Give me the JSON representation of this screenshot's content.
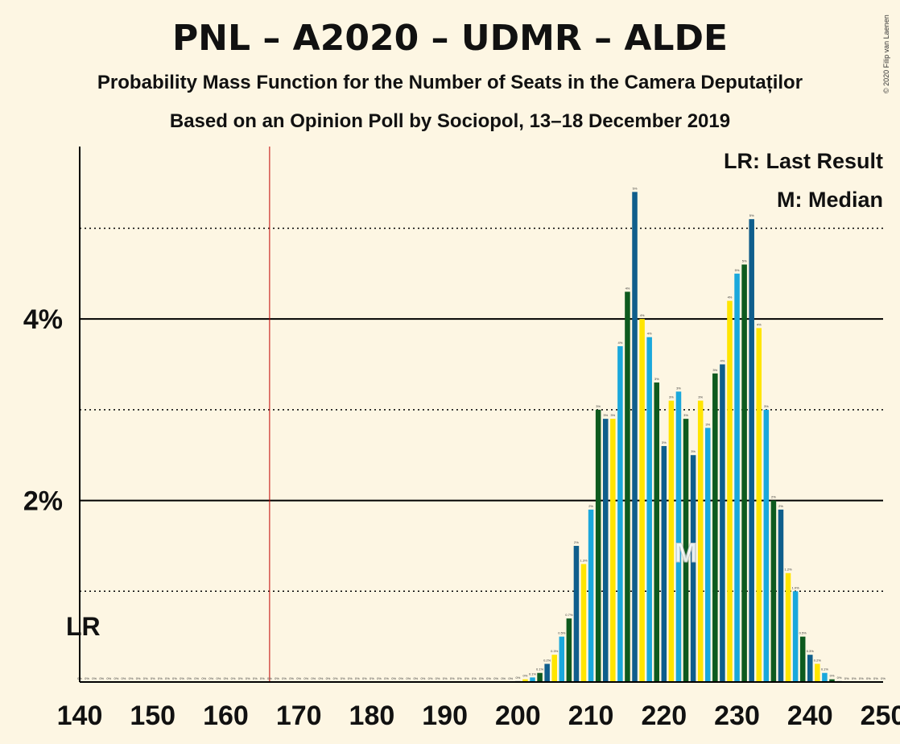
{
  "chart_data": {
    "type": "bar",
    "title": "PNL – A2020 – UDMR – ALDE",
    "subtitle": "Probability Mass Function for the Number of Seats in the Camera Deputaților",
    "source": "Based on an Opinion Poll by Sociopol, 13–18 December 2019",
    "copyright": "© 2020 Filip van Laenen",
    "xlim": [
      140,
      250
    ],
    "ylim": [
      0,
      5.9
    ],
    "x_ticks": [
      140,
      150,
      160,
      170,
      180,
      190,
      200,
      210,
      220,
      230,
      240,
      250
    ],
    "y_ticks": [
      {
        "value": 2,
        "label": "2%"
      },
      {
        "value": 4,
        "label": "4%"
      }
    ],
    "dotted_gridlines": [
      1,
      3,
      5
    ],
    "last_result": {
      "x": 166,
      "label": "LR"
    },
    "median": {
      "x": 223,
      "label": "M"
    },
    "legend": [
      "LR: Last Result",
      "M: Median"
    ],
    "legend_position": "top-right",
    "bar_colors": [
      "#0F5E8C",
      "#FFE500",
      "#1AA8DC",
      "#0D5A1E"
    ],
    "seats": [
      140,
      141,
      142,
      143,
      144,
      145,
      146,
      147,
      148,
      149,
      150,
      151,
      152,
      153,
      154,
      155,
      156,
      157,
      158,
      159,
      160,
      161,
      162,
      163,
      164,
      165,
      166,
      167,
      168,
      169,
      170,
      171,
      172,
      173,
      174,
      175,
      176,
      177,
      178,
      179,
      180,
      181,
      182,
      183,
      184,
      185,
      186,
      187,
      188,
      189,
      190,
      191,
      192,
      193,
      194,
      195,
      196,
      197,
      198,
      199,
      200,
      201,
      202,
      203,
      204,
      205,
      206,
      207,
      208,
      209,
      210,
      211,
      212,
      213,
      214,
      215,
      216,
      217,
      218,
      219,
      220,
      221,
      222,
      223,
      224,
      225,
      226,
      227,
      228,
      229,
      230,
      231,
      232,
      233,
      234,
      235,
      236,
      237,
      238,
      239,
      240,
      241,
      242,
      243,
      244,
      245,
      246,
      247,
      248,
      249,
      250
    ],
    "values": [
      0,
      0,
      0,
      0,
      0,
      0,
      0,
      0,
      0,
      0,
      0,
      0,
      0,
      0,
      0,
      0,
      0,
      0,
      0,
      0,
      0,
      0,
      0,
      0,
      0,
      0,
      0,
      0,
      0,
      0,
      0,
      0,
      0,
      0,
      0,
      0,
      0,
      0,
      0,
      0,
      0,
      0,
      0,
      0,
      0,
      0,
      0,
      0,
      0,
      0,
      0,
      0,
      0,
      0,
      0,
      0,
      0,
      0,
      0,
      0,
      0.01,
      0.03,
      0.05,
      0.1,
      0.2,
      0.3,
      0.5,
      0.7,
      1.5,
      1.3,
      1.9,
      3.0,
      2.9,
      2.9,
      3.7,
      4.3,
      5.4,
      4.0,
      3.8,
      3.3,
      2.6,
      3.1,
      3.2,
      2.9,
      2.5,
      3.1,
      2.8,
      3.4,
      3.5,
      4.2,
      4.5,
      4.6,
      5.1,
      3.9,
      3.0,
      2.0,
      1.9,
      1.2,
      1.0,
      0.5,
      0.3,
      0.2,
      0.1,
      0.03,
      0.01,
      0,
      0,
      0,
      0,
      0,
      0
    ],
    "labels": [
      "0%",
      "0%",
      "0%",
      "0%",
      "0%",
      "0%",
      "0%",
      "0%",
      "0%",
      "0%",
      "0%",
      "0%",
      "0%",
      "0%",
      "0%",
      "0%",
      "0%",
      "0%",
      "0%",
      "0%",
      "0%",
      "0%",
      "0%",
      "0%",
      "0%",
      "0%",
      "0%",
      "0%",
      "0%",
      "0%",
      "0%",
      "0%",
      "0%",
      "0%",
      "0%",
      "0%",
      "0%",
      "0%",
      "0%",
      "0%",
      "0%",
      "0%",
      "0%",
      "0%",
      "0%",
      "0%",
      "0%",
      "0%",
      "0%",
      "0%",
      "0%",
      "0%",
      "0%",
      "0%",
      "0%",
      "0%",
      "0%",
      "0%",
      "0%",
      "0%",
      "0%",
      "0%",
      "0.1%",
      "0.1%",
      "0.2%",
      "0.3%",
      "0.5%",
      "0.7%",
      "2%",
      "1.3%",
      "2%",
      "3%",
      "3%",
      "3%",
      "4%",
      "4%",
      "5%",
      "4%",
      "4%",
      "3%",
      "3%",
      "3%",
      "3%",
      "3%",
      "3%",
      "3%",
      "3%",
      "3%",
      "4%",
      "4%",
      "5%",
      "5%",
      "5%",
      "4%",
      "3%",
      "2%",
      "2%",
      "1.2%",
      "1.0%",
      "0.5%",
      "0.3%",
      "0.2%",
      "0.1%",
      "0%",
      "0%",
      "0%",
      "0%",
      "0%",
      "0%",
      "0%",
      "0%"
    ]
  }
}
